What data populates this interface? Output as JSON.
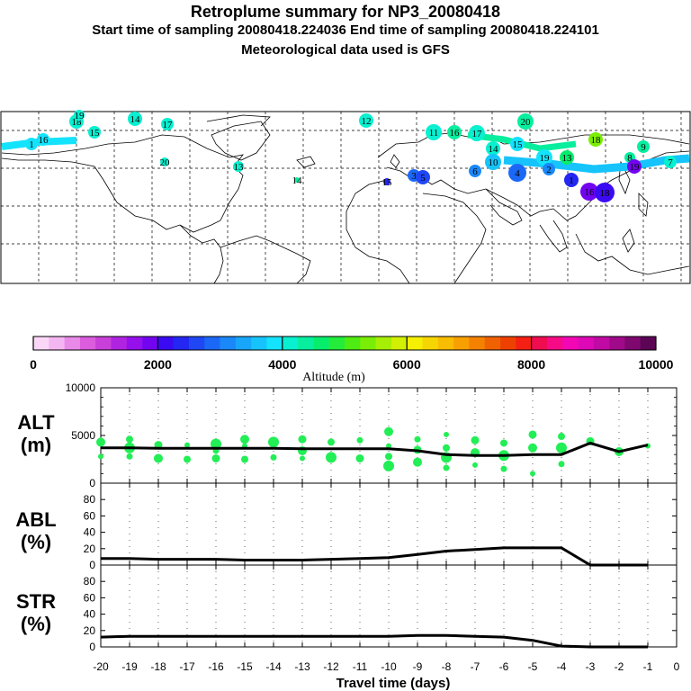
{
  "header": {
    "title": "Retroplume summary for NP3_20080418",
    "subtitle": "Start time of sampling 20080418.224036     End time of sampling 20080418.224101",
    "met_line": "Meteorological data used is GFS"
  },
  "colors": {
    "point": "#22ee55",
    "line": "#000000",
    "colorbar": [
      "#fbd7f7",
      "#f3b6f1",
      "#e98ae8",
      "#dc5cde",
      "#c93fd9",
      "#b023e1",
      "#9510ea",
      "#7304f0",
      "#3a0bf2",
      "#2426f2",
      "#1f47f4",
      "#1c68f6",
      "#1a88f8",
      "#18a6fa",
      "#16c4fb",
      "#14e3fd",
      "#08f0d0",
      "#07ee9e",
      "#06ed6c",
      "#23ed3a",
      "#4eec12",
      "#7aed06",
      "#a6ee05",
      "#d2f004",
      "#f5ef03",
      "#f6d602",
      "#f8bc02",
      "#f89f02",
      "#f58101",
      "#f06201",
      "#ee4101",
      "#f51f14",
      "#f00d4f",
      "#f70a86",
      "#f307b4",
      "#dd09b6",
      "#c00aa3",
      "#a0098a",
      "#7e0770",
      "#5c0555"
    ]
  },
  "map": {
    "trajectory_labels": [
      "1",
      "16",
      "18",
      "19",
      "15",
      "14",
      "17",
      "20",
      "13",
      "12",
      "11",
      "16",
      "17",
      "20",
      "14",
      "15",
      "10",
      "19",
      "13",
      "18",
      "9",
      "8",
      "7",
      "3",
      "5",
      "6",
      "4",
      "2"
    ]
  },
  "colorbar": {
    "ticks": [
      "0",
      "2000",
      "4000",
      "6000",
      "8000",
      "10000"
    ],
    "label": "Altitude (m)"
  },
  "chart_data": [
    {
      "type": "scatter+line",
      "panel_label": [
        "ALT",
        "(m)"
      ],
      "xlim": [
        -20,
        0
      ],
      "ylim": [
        0,
        10000
      ],
      "yticks": [
        "0",
        "5000",
        "10000"
      ],
      "median_line": {
        "x": [
          -20,
          -19,
          -18,
          -17,
          -16,
          -15,
          -14,
          -13,
          -12,
          -11,
          -10,
          -9,
          -8,
          -7,
          -6,
          -5,
          -4,
          -3,
          -2,
          -1
        ],
        "y": [
          3700,
          3700,
          3650,
          3650,
          3650,
          3650,
          3650,
          3600,
          3600,
          3600,
          3600,
          3400,
          3000,
          2900,
          2900,
          3000,
          3000,
          4200,
          3300,
          4000
        ]
      },
      "points": [
        {
          "x": -20,
          "y": [
            4300,
            2800
          ]
        },
        {
          "x": -19,
          "y": [
            4600,
            3700,
            2800
          ]
        },
        {
          "x": -18,
          "y": [
            4000,
            2600
          ]
        },
        {
          "x": -17,
          "y": [
            4000,
            2500
          ]
        },
        {
          "x": -16,
          "y": [
            4100,
            3400,
            2600
          ]
        },
        {
          "x": -15,
          "y": [
            4600,
            3900,
            2500
          ]
        },
        {
          "x": -14,
          "y": [
            4300,
            2700
          ]
        },
        {
          "x": -13,
          "y": [
            4600,
            3400,
            2600
          ]
        },
        {
          "x": -12,
          "y": [
            4300,
            2700
          ]
        },
        {
          "x": -11,
          "y": [
            4500,
            2600
          ]
        },
        {
          "x": -10,
          "y": [
            5400,
            3900,
            2800,
            1800
          ]
        },
        {
          "x": -9,
          "y": [
            4600,
            3500,
            2200
          ]
        },
        {
          "x": -8,
          "y": [
            5100,
            3700,
            2700,
            1600
          ]
        },
        {
          "x": -7,
          "y": [
            4500,
            3200,
            1900
          ]
        },
        {
          "x": -6,
          "y": [
            4200,
            2900,
            1500
          ]
        },
        {
          "x": -5,
          "y": [
            5100,
            3700,
            1000
          ]
        },
        {
          "x": -4,
          "y": [
            4900,
            3700,
            2000
          ]
        },
        {
          "x": -3,
          "y": [
            4400
          ]
        },
        {
          "x": -2,
          "y": [
            3300
          ]
        },
        {
          "x": -1,
          "y": [
            3900
          ]
        }
      ]
    },
    {
      "type": "line",
      "panel_label": [
        "ABL",
        "(%)"
      ],
      "xlim": [
        -20,
        0
      ],
      "ylim": [
        0,
        100
      ],
      "yticks": [
        "0",
        "20",
        "40",
        "60",
        "80"
      ],
      "x": [
        -20,
        -19,
        -18,
        -17,
        -16,
        -15,
        -14,
        -13,
        -12,
        -11,
        -10,
        -9,
        -8,
        -7,
        -6,
        -5,
        -4,
        -3,
        -2,
        -1
      ],
      "y": [
        8,
        8,
        7,
        7,
        7,
        6,
        6,
        6,
        7,
        8,
        9,
        13,
        17,
        19,
        21,
        21,
        21,
        0,
        0,
        0
      ]
    },
    {
      "type": "line",
      "panel_label": [
        "STR",
        "(%)"
      ],
      "xlim": [
        -20,
        0
      ],
      "ylim": [
        0,
        100
      ],
      "yticks": [
        "0",
        "20",
        "40",
        "60",
        "80"
      ],
      "x": [
        -20,
        -19,
        -18,
        -17,
        -16,
        -15,
        -14,
        -13,
        -12,
        -11,
        -10,
        -9,
        -8,
        -7,
        -6,
        -5,
        -4,
        -3,
        -2,
        -1
      ],
      "y": [
        12,
        13,
        13,
        13,
        13,
        13,
        13,
        13,
        13,
        13,
        13,
        14,
        14,
        13,
        12,
        8,
        1,
        0,
        0,
        0
      ]
    }
  ],
  "x_axis": {
    "ticks": [
      "-20",
      "-19",
      "-18",
      "-17",
      "-16",
      "-15",
      "-14",
      "-13",
      "-12",
      "-11",
      "-10",
      "-9",
      "-8",
      "-7",
      "-6",
      "-5",
      "-4",
      "-3",
      "-2",
      "-1",
      "0"
    ],
    "label": "Travel time (days)"
  }
}
